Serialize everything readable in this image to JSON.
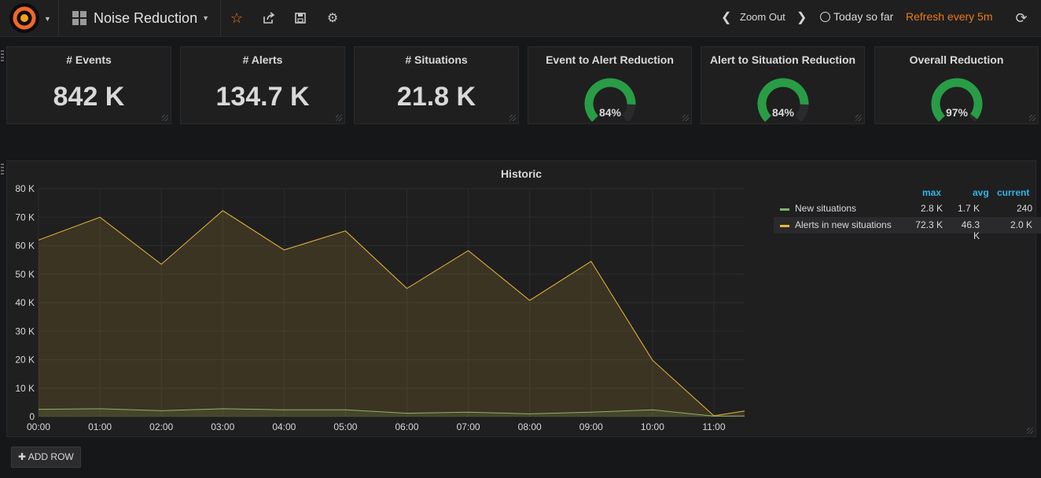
{
  "topbar": {
    "dashboard_title": "Noise Reduction",
    "zoom_label": "Zoom Out",
    "time_range": "Today so far",
    "refresh_label": "Refresh every 5m"
  },
  "stats": [
    {
      "title": "# Events",
      "value": "842 K"
    },
    {
      "title": "# Alerts",
      "value": "134.7 K"
    },
    {
      "title": "# Situations",
      "value": "21.8 K"
    }
  ],
  "gauges": [
    {
      "title": "Event to Alert Reduction",
      "value_label": "84%",
      "value": 84,
      "color": "#299c46"
    },
    {
      "title": "Alert to Situation Reduction",
      "value_label": "84%",
      "value": 84,
      "color": "#299c46"
    },
    {
      "title": "Overall Reduction",
      "value_label": "97%",
      "value": 97,
      "color": "#299c46"
    }
  ],
  "chart_data": {
    "type": "area",
    "title": "Historic",
    "x": [
      "00:00",
      "01:00",
      "02:00",
      "03:00",
      "04:00",
      "05:00",
      "06:00",
      "07:00",
      "08:00",
      "09:00",
      "10:00",
      "11:00",
      "11:30"
    ],
    "x_ticks": [
      "00:00",
      "01:00",
      "02:00",
      "03:00",
      "04:00",
      "05:00",
      "06:00",
      "07:00",
      "08:00",
      "09:00",
      "10:00",
      "11:00"
    ],
    "y_ticks": [
      "0",
      "10 K",
      "20 K",
      "30 K",
      "40 K",
      "50 K",
      "60 K",
      "70 K",
      "80 K"
    ],
    "ylim": [
      0,
      80000
    ],
    "grid": true,
    "legend_position": "right",
    "series": [
      {
        "name": "New situations",
        "color": "#7eb26d",
        "values": [
          2600,
          2800,
          2100,
          2800,
          2400,
          2400,
          1200,
          1600,
          1000,
          1600,
          2400,
          200,
          240
        ]
      },
      {
        "name": "Alerts in new situations",
        "color": "#eab839",
        "values": [
          62000,
          70000,
          53500,
          72300,
          58500,
          65200,
          45000,
          58300,
          40800,
          54500,
          19800,
          300,
          2000
        ]
      }
    ]
  },
  "legend": {
    "headers": {
      "max": "max",
      "avg": "avg",
      "current": "current"
    },
    "rows": [
      {
        "name": "New situations",
        "color": "#7eb26d",
        "max": "2.8 K",
        "avg": "1.7 K",
        "current": "240"
      },
      {
        "name": "Alerts in new situations",
        "color": "#eab839",
        "max": "72.3 K",
        "avg": "46.3 K",
        "current": "2.0 K"
      }
    ]
  },
  "add_row_label": "✚ ADD ROW"
}
